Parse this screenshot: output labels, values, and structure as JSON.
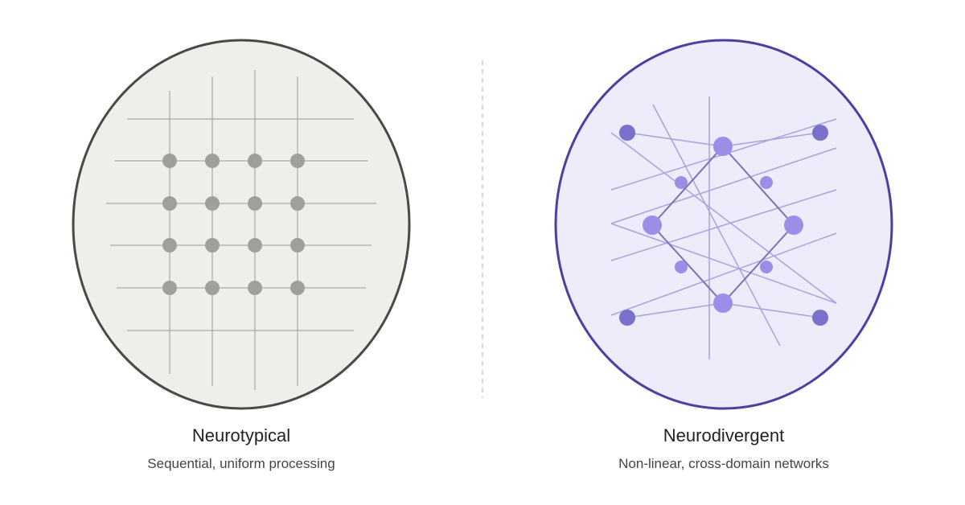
{
  "left": {
    "title": "Neurotypical",
    "subtitle": "Sequential, uniform processing"
  },
  "right": {
    "title": "Neurodivergent",
    "subtitle": "Non-linear, cross-domain networks"
  }
}
